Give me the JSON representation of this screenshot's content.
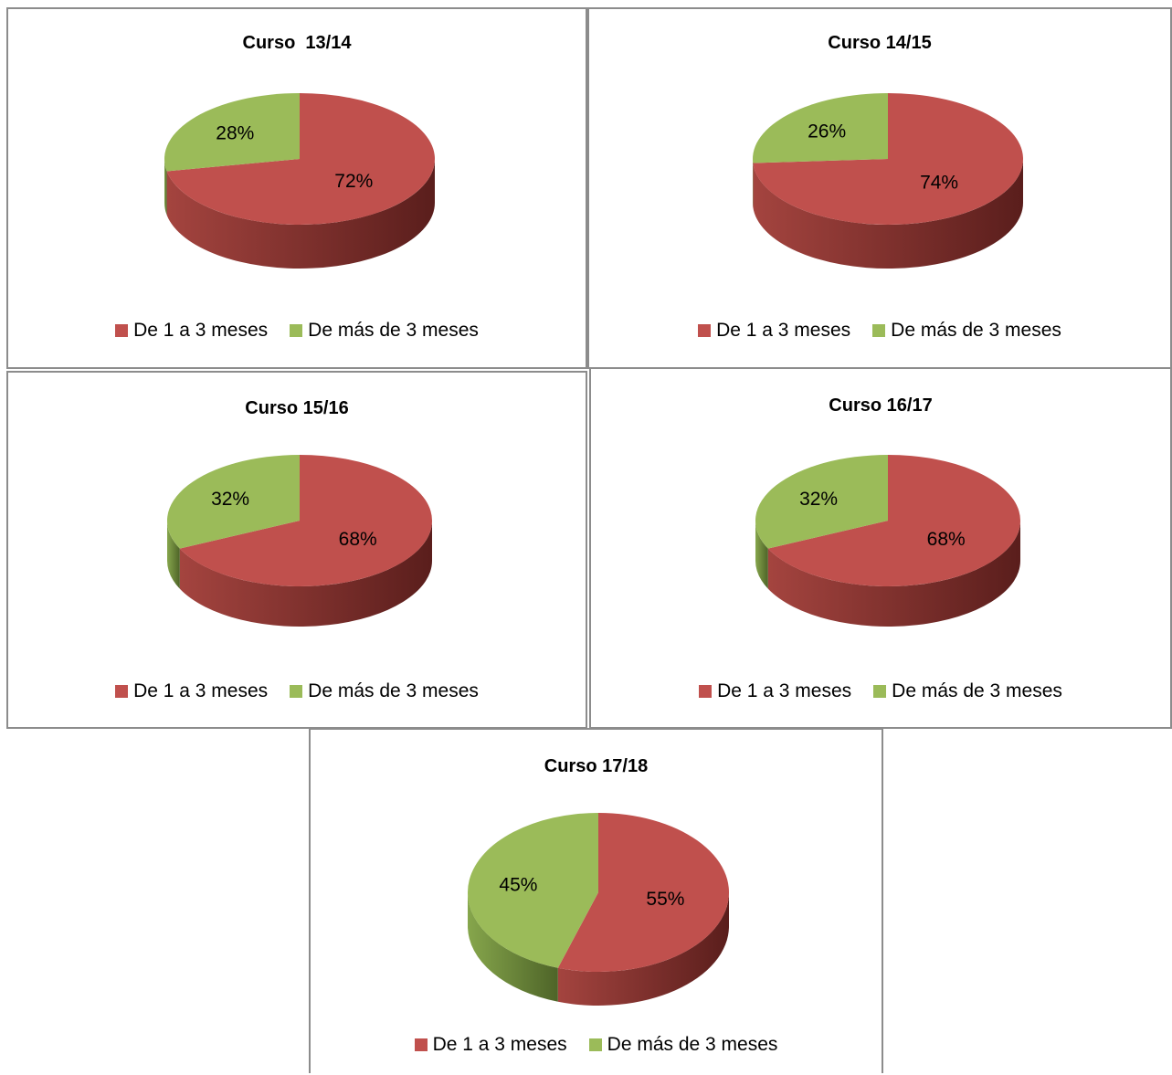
{
  "colors": {
    "red": "#c0504d",
    "red_side_light": "#a4443f",
    "red_side_dark": "#5a1e1c",
    "green": "#9bbb59",
    "green_side_light": "#86a64c",
    "green_side_dark": "#4e6428"
  },
  "chart_data": [
    {
      "type": "pie",
      "title": "Curso  13/14",
      "categories": [
        "De 1 a 3 meses",
        "De más de 3 meses"
      ],
      "values": [
        72,
        28
      ],
      "labels": [
        "72%",
        "28%"
      ],
      "legend_position": "bottom"
    },
    {
      "type": "pie",
      "title": "Curso 14/15",
      "categories": [
        "De 1 a 3 meses",
        "De más de 3 meses"
      ],
      "values": [
        74,
        26
      ],
      "labels": [
        "74%",
        "26%"
      ],
      "legend_position": "bottom"
    },
    {
      "type": "pie",
      "title": "Curso 15/16",
      "categories": [
        "De 1 a 3 meses",
        "De más de 3 meses"
      ],
      "values": [
        68,
        32
      ],
      "labels": [
        "68%",
        "32%"
      ],
      "legend_position": "bottom"
    },
    {
      "type": "pie",
      "title": "Curso 16/17",
      "categories": [
        "De 1 a 3 meses",
        "De más de 3 meses"
      ],
      "values": [
        68,
        32
      ],
      "labels": [
        "68%",
        "32%"
      ],
      "legend_position": "bottom"
    },
    {
      "type": "pie",
      "title": "Curso 17/18",
      "categories": [
        "De 1 a 3 meses",
        "De más de 3 meses"
      ],
      "values": [
        55,
        45
      ],
      "labels": [
        "55%",
        "45%"
      ],
      "legend_position": "bottom"
    }
  ]
}
